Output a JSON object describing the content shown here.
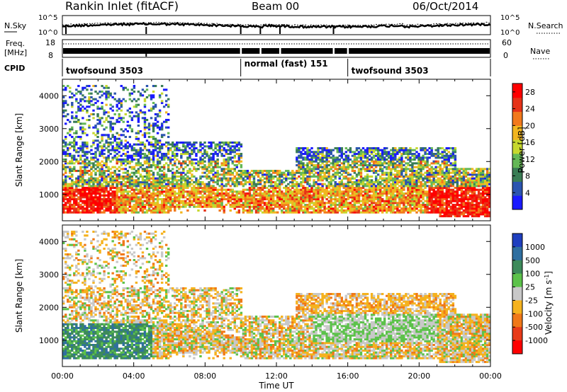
{
  "header": {
    "station": "Rankin Inlet (fitACF)",
    "beam": "Beam 00",
    "date": "06/Oct/2014"
  },
  "strips": {
    "nsky_label": "N.Sky",
    "nsearch_label": "N.Search",
    "nsky_ticks": [
      "10^5",
      "10^0"
    ],
    "nsearch_ticks": [
      "10^5",
      "10^0"
    ],
    "freq_label": "Freq.",
    "freq_unit": "[MHz]",
    "freq_ticks": [
      "18",
      "8"
    ],
    "nave_label": "Nave",
    "nave_ticks": [
      "60",
      "0"
    ],
    "cpid_label": "CPID",
    "cpid_segments": [
      {
        "label": "twofsound 3503",
        "start": 0,
        "end": 10
      },
      {
        "label": "normal (fast) 151",
        "start": 10,
        "end": 16
      },
      {
        "label": "twofsound 3503",
        "start": 16,
        "end": 24
      }
    ]
  },
  "chart_data": [
    {
      "type": "heatmap",
      "panel": "power",
      "xlabel": "",
      "ylabel": "Slant Range [km]",
      "xlim": [
        0,
        24
      ],
      "ylim": [
        200,
        4500
      ],
      "yticks": [
        "1000",
        "2000",
        "3000",
        "4000"
      ],
      "colorbar": {
        "label": "Power [dB]",
        "ticks": [
          "4",
          "8",
          "12",
          "16",
          "20",
          "24",
          "28"
        ],
        "range": [
          0,
          30
        ],
        "colors": [
          "#1a1aff",
          "#2b54b0",
          "#3a7d55",
          "#64b856",
          "#c6d82e",
          "#f2b620",
          "#f2791c",
          "#e63218",
          "#ff0000"
        ]
      }
    },
    {
      "type": "heatmap",
      "panel": "velocity",
      "xlabel": "Time UT",
      "ylabel": "Slant Range [km]",
      "xlim": [
        0,
        24
      ],
      "ylim": [
        200,
        4500
      ],
      "yticks": [
        "1000",
        "2000",
        "3000",
        "4000"
      ],
      "xticks": [
        "00:00",
        "04:00",
        "08:00",
        "12:00",
        "16:00",
        "20:00",
        "00:00"
      ],
      "colorbar": {
        "label": "Velocity [m s^-1]",
        "ticks": [
          "1000",
          "500",
          "100",
          "25",
          "-25",
          "-100",
          "-500",
          "-1000"
        ],
        "colors": [
          "#1f3fbf",
          "#2f6fa0",
          "#3d8a5a",
          "#5cc24a",
          "#c8c8c8",
          "#f5b21e",
          "#f07818",
          "#e83a18",
          "#ff0000"
        ]
      }
    }
  ]
}
